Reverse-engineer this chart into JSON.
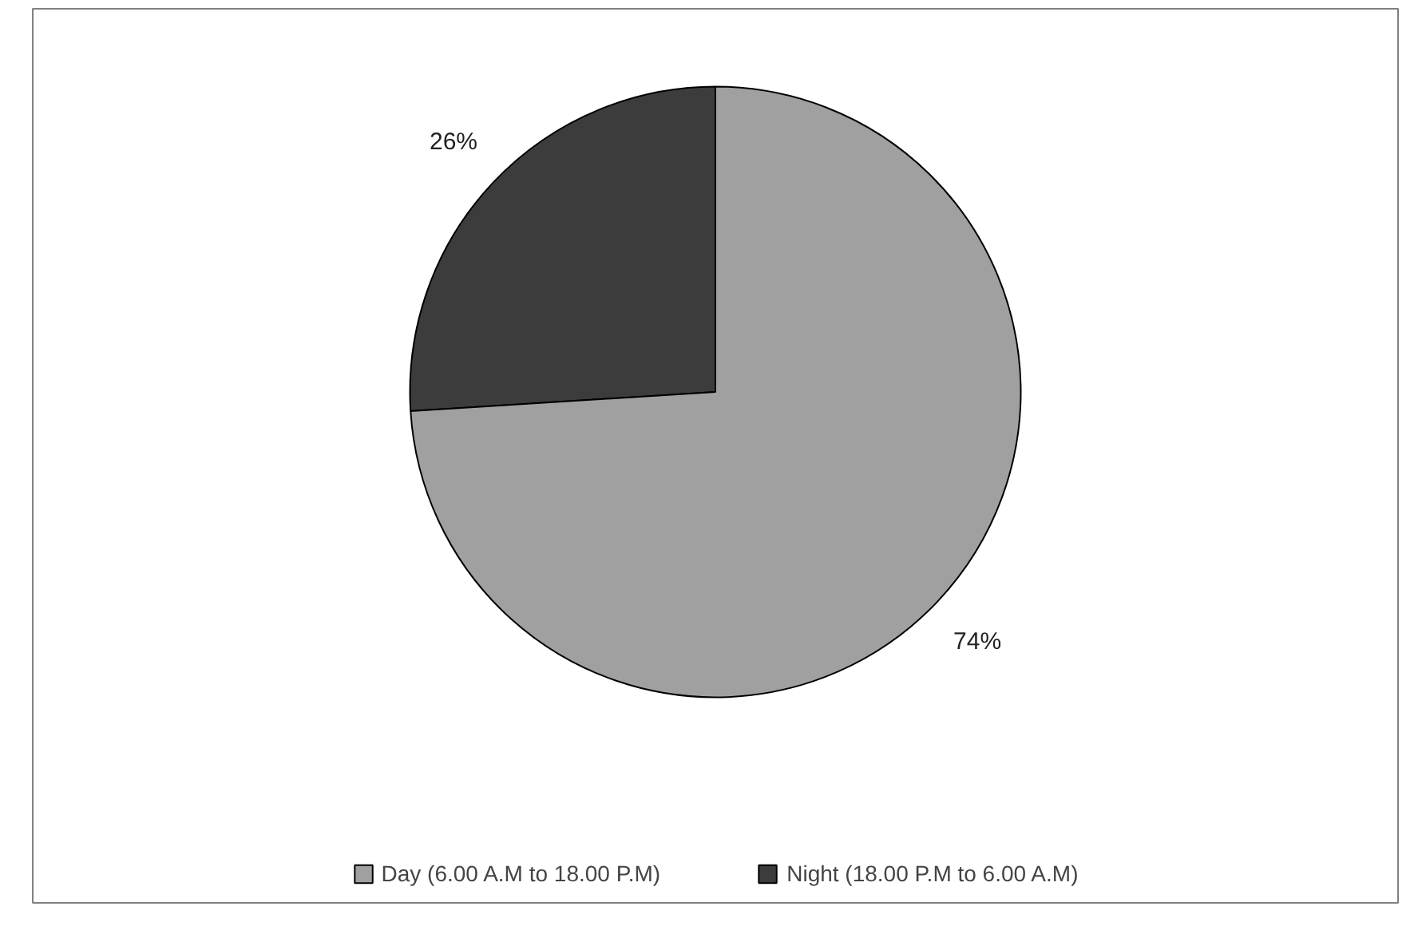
{
  "chart_data": {
    "type": "pie",
    "categories": [
      "Day (6.00 A.M to 18.00 P.M)",
      "Night (18.00 P.M to 6.00 A.M)"
    ],
    "values": [
      74,
      26
    ],
    "colors": [
      "#a0a0a0",
      "#3c3c3c"
    ],
    "value_labels": [
      "74%",
      "26%"
    ],
    "legend": "bottom"
  }
}
